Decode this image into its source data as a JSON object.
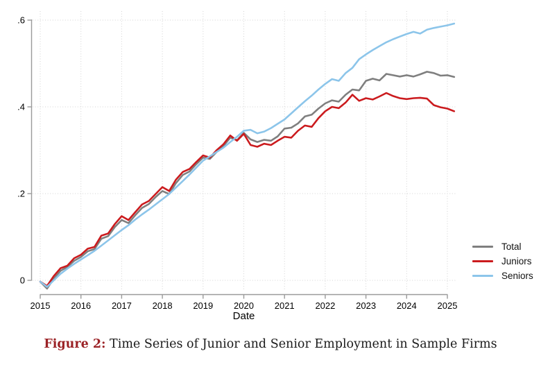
{
  "figure": {
    "label": "Figure 2:",
    "label_color": "#9b2226",
    "caption": "Time Series of Junior and Senior Employment in Sample Firms"
  },
  "colors": {
    "total": "#7f7f7f",
    "juniors": "#cb1b1e",
    "seniors": "#8cc5ea",
    "grid": "#d2d2d2",
    "axis": "#9a9a9a",
    "tick_text": "#000000"
  },
  "chart_data": {
    "type": "line",
    "title": "",
    "xlabel": "Date",
    "ylabel": "",
    "grid": true,
    "legend_position": "bottom-right-outside",
    "xlim": [
      2015,
      2025.3
    ],
    "ylim": [
      0,
      0.6
    ],
    "x_ticks": [
      2015,
      2016,
      2017,
      2018,
      2019,
      2020,
      2021,
      2022,
      2023,
      2024,
      2025
    ],
    "y_ticks": [
      {
        "v": 0.0,
        "label": "0"
      },
      {
        "v": 0.2,
        "label": ".2"
      },
      {
        "v": 0.4,
        "label": ".4"
      },
      {
        "v": 0.6,
        "label": ".6"
      }
    ],
    "x": [
      2015.0,
      2015.167,
      2015.333,
      2015.5,
      2015.667,
      2015.833,
      2016.0,
      2016.167,
      2016.333,
      2016.5,
      2016.667,
      2016.833,
      2017.0,
      2017.167,
      2017.333,
      2017.5,
      2017.667,
      2017.833,
      2018.0,
      2018.167,
      2018.333,
      2018.5,
      2018.667,
      2018.833,
      2019.0,
      2019.167,
      2019.333,
      2019.5,
      2019.667,
      2019.833,
      2020.0,
      2020.167,
      2020.333,
      2020.5,
      2020.667,
      2020.833,
      2021.0,
      2021.167,
      2021.333,
      2021.5,
      2021.667,
      2021.833,
      2022.0,
      2022.167,
      2022.333,
      2022.5,
      2022.667,
      2022.833,
      2023.0,
      2023.167,
      2023.333,
      2023.5,
      2023.667,
      2023.833,
      2024.0,
      2024.167,
      2024.333,
      2024.5,
      2024.667,
      2024.833,
      2025.0,
      2025.167
    ],
    "series": [
      {
        "name": "Total",
        "color": "#7f7f7f",
        "values": [
          -0.003,
          -0.019,
          0.004,
          0.022,
          0.031,
          0.045,
          0.054,
          0.067,
          0.072,
          0.096,
          0.102,
          0.123,
          0.139,
          0.132,
          0.15,
          0.167,
          0.176,
          0.192,
          0.206,
          0.199,
          0.224,
          0.243,
          0.251,
          0.268,
          0.283,
          0.28,
          0.296,
          0.31,
          0.329,
          0.323,
          0.34,
          0.325,
          0.319,
          0.324,
          0.322,
          0.332,
          0.35,
          0.352,
          0.362,
          0.378,
          0.382,
          0.396,
          0.408,
          0.415,
          0.412,
          0.428,
          0.44,
          0.438,
          0.46,
          0.465,
          0.461,
          0.476,
          0.473,
          0.47,
          0.473,
          0.47,
          0.475,
          0.481,
          0.478,
          0.472,
          0.473,
          0.469
        ]
      },
      {
        "name": "Juniors",
        "color": "#cb1b1e",
        "values": [
          -0.003,
          -0.013,
          0.01,
          0.028,
          0.034,
          0.051,
          0.059,
          0.073,
          0.077,
          0.103,
          0.108,
          0.13,
          0.148,
          0.139,
          0.157,
          0.175,
          0.183,
          0.199,
          0.215,
          0.206,
          0.232,
          0.25,
          0.257,
          0.273,
          0.288,
          0.283,
          0.3,
          0.314,
          0.334,
          0.322,
          0.338,
          0.312,
          0.308,
          0.315,
          0.312,
          0.322,
          0.331,
          0.329,
          0.345,
          0.357,
          0.354,
          0.374,
          0.39,
          0.4,
          0.397,
          0.41,
          0.428,
          0.414,
          0.42,
          0.417,
          0.424,
          0.432,
          0.425,
          0.42,
          0.418,
          0.42,
          0.421,
          0.419,
          0.404,
          0.399,
          0.396,
          0.39
        ]
      },
      {
        "name": "Seniors",
        "color": "#8cc5ea",
        "values": [
          -0.003,
          -0.015,
          0.0,
          0.015,
          0.027,
          0.038,
          0.048,
          0.058,
          0.068,
          0.08,
          0.092,
          0.104,
          0.116,
          0.127,
          0.14,
          0.152,
          0.163,
          0.175,
          0.187,
          0.199,
          0.214,
          0.229,
          0.244,
          0.26,
          0.276,
          0.286,
          0.296,
          0.306,
          0.319,
          0.331,
          0.345,
          0.347,
          0.339,
          0.343,
          0.351,
          0.361,
          0.371,
          0.385,
          0.399,
          0.413,
          0.426,
          0.44,
          0.453,
          0.464,
          0.46,
          0.478,
          0.49,
          0.51,
          0.521,
          0.531,
          0.54,
          0.549,
          0.556,
          0.562,
          0.568,
          0.573,
          0.569,
          0.578,
          0.582,
          0.585,
          0.588,
          0.592
        ]
      }
    ]
  }
}
